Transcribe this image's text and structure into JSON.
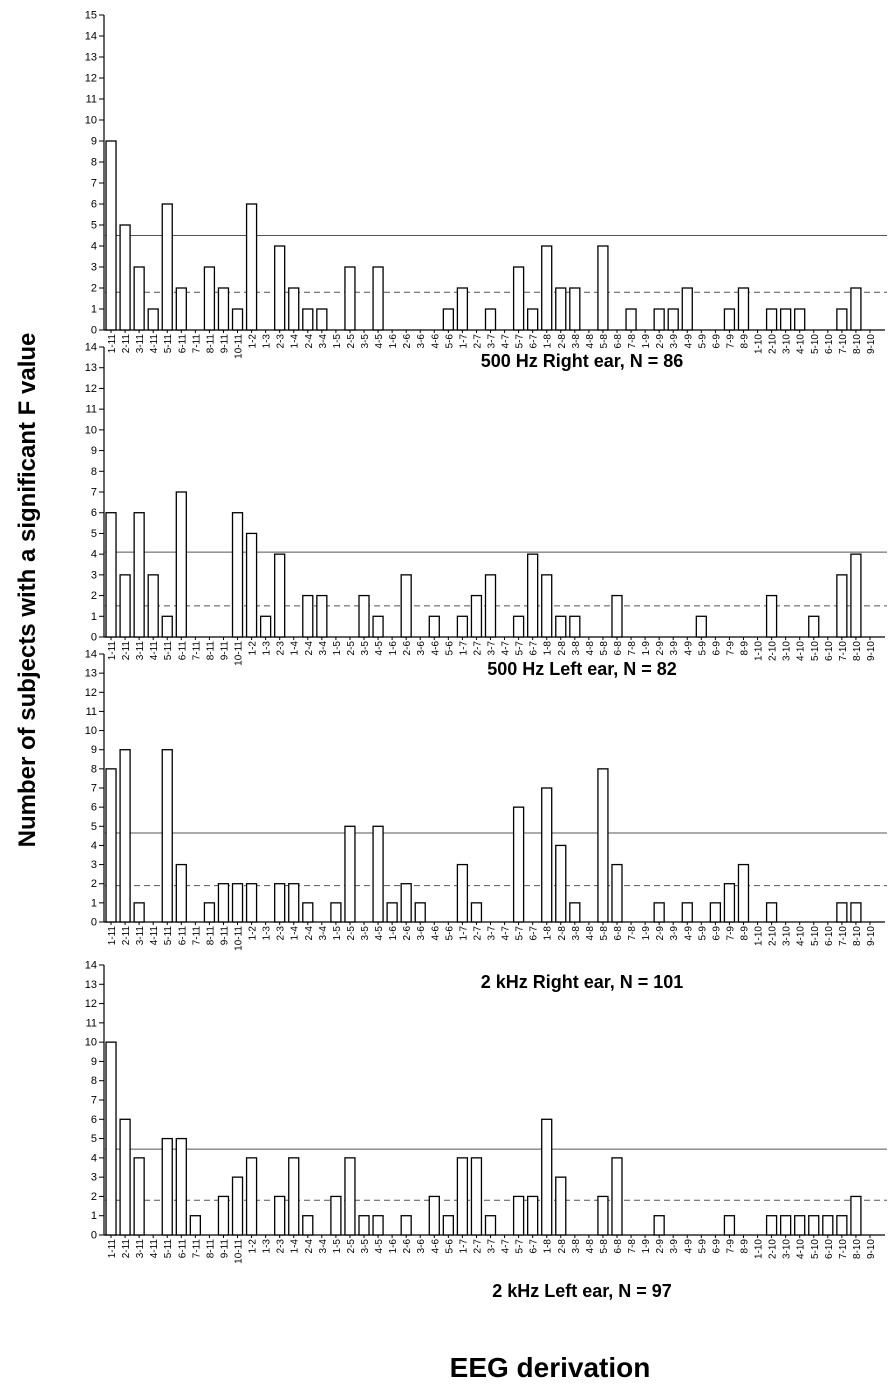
{
  "ylabel": "Number of subjects with a significant F value",
  "xlabel": "EEG derivation",
  "chart_data": [
    {
      "type": "bar",
      "title": "500 Hz Right ear, N = 86",
      "ylim": [
        0,
        15
      ],
      "y_ticks": [
        0,
        1,
        2,
        3,
        4,
        5,
        6,
        7,
        8,
        9,
        10,
        11,
        12,
        13,
        14,
        15
      ],
      "solid_line": 4.5,
      "dashed_line": 1.8,
      "categories": [
        "1-11",
        "2-11",
        "3-11",
        "4-11",
        "5-11",
        "6-11",
        "7-11",
        "8-11",
        "9-11",
        "10-11",
        "1-2",
        "1-3",
        "2-3",
        "1-4",
        "2-4",
        "3-4",
        "1-5",
        "2-5",
        "3-5",
        "4-5",
        "1-6",
        "2-6",
        "3-6",
        "4-6",
        "5-6",
        "1-7",
        "2-7",
        "3-7",
        "4-7",
        "5-7",
        "6-7",
        "1-8",
        "2-8",
        "3-8",
        "4-8",
        "5-8",
        "6-8",
        "7-8",
        "1-9",
        "2-9",
        "3-9",
        "4-9",
        "5-9",
        "6-9",
        "7-9",
        "8-9",
        "1-10",
        "2-10",
        "3-10",
        "4-10",
        "5-10",
        "6-10",
        "7-10",
        "8-10",
        "9-10"
      ],
      "values": [
        9,
        5,
        3,
        1,
        6,
        2,
        0,
        3,
        2,
        1,
        6,
        0,
        4,
        2,
        1,
        1,
        0,
        3,
        0,
        3,
        0,
        0,
        0,
        0,
        1,
        2,
        0,
        1,
        0,
        3,
        1,
        4,
        2,
        2,
        0,
        4,
        0,
        1,
        0,
        1,
        1,
        2,
        0,
        0,
        1,
        2,
        0,
        1,
        1,
        1,
        0,
        0,
        1,
        2,
        0
      ]
    },
    {
      "type": "bar",
      "title": "500 Hz Left ear, N = 82",
      "ylim": [
        0,
        14
      ],
      "y_ticks": [
        0,
        1,
        2,
        3,
        4,
        5,
        6,
        7,
        8,
        9,
        10,
        11,
        12,
        13,
        14
      ],
      "solid_line": 4.1,
      "dashed_line": 1.5,
      "categories": [
        "1-11",
        "2-11",
        "3-11",
        "4-11",
        "5-11",
        "6-11",
        "7-11",
        "8-11",
        "9-11",
        "10-11",
        "1-2",
        "1-3",
        "2-3",
        "1-4",
        "2-4",
        "3-4",
        "1-5",
        "2-5",
        "3-5",
        "4-5",
        "1-6",
        "2-6",
        "3-6",
        "4-6",
        "5-6",
        "1-7",
        "2-7",
        "3-7",
        "4-7",
        "5-7",
        "6-7",
        "1-8",
        "2-8",
        "3-8",
        "4-8",
        "5-8",
        "6-8",
        "7-8",
        "1-9",
        "2-9",
        "3-9",
        "4-9",
        "5-9",
        "6-9",
        "7-9",
        "8-9",
        "1-10",
        "2-10",
        "3-10",
        "4-10",
        "5-10",
        "6-10",
        "7-10",
        "8-10",
        "9-10"
      ],
      "values": [
        6,
        3,
        6,
        3,
        1,
        7,
        0,
        0,
        0,
        6,
        5,
        1,
        4,
        0,
        2,
        2,
        0,
        0,
        2,
        1,
        0,
        3,
        0,
        1,
        0,
        1,
        2,
        3,
        0,
        1,
        4,
        3,
        1,
        1,
        0,
        0,
        2,
        0,
        0,
        0,
        0,
        0,
        1,
        0,
        0,
        0,
        0,
        2,
        0,
        0,
        1,
        0,
        3,
        4,
        0
      ]
    },
    {
      "type": "bar",
      "title": "2 kHz Right ear, N = 101",
      "ylim": [
        0,
        14
      ],
      "y_ticks": [
        0,
        1,
        2,
        3,
        4,
        5,
        6,
        7,
        8,
        9,
        10,
        11,
        12,
        13,
        14
      ],
      "solid_line": 4.65,
      "dashed_line": 1.9,
      "categories": [
        "1-11",
        "2-11",
        "3-11",
        "4-11",
        "5-11",
        "6-11",
        "7-11",
        "8-11",
        "9-11",
        "10-11",
        "1-2",
        "1-3",
        "2-3",
        "1-4",
        "2-4",
        "3-4",
        "1-5",
        "2-5",
        "3-5",
        "4-5",
        "1-6",
        "2-6",
        "3-6",
        "4-6",
        "5-6",
        "1-7",
        "2-7",
        "3-7",
        "4-7",
        "5-7",
        "6-7",
        "1-8",
        "2-8",
        "3-8",
        "4-8",
        "5-8",
        "6-8",
        "7-8",
        "1-9",
        "2-9",
        "3-9",
        "4-9",
        "5-9",
        "6-9",
        "7-9",
        "8-9",
        "1-10",
        "2-10",
        "3-10",
        "4-10",
        "5-10",
        "6-10",
        "7-10",
        "8-10",
        "9-10"
      ],
      "values": [
        8,
        9,
        1,
        0,
        9,
        3,
        0,
        1,
        2,
        2,
        2,
        0,
        2,
        2,
        1,
        0,
        1,
        5,
        0,
        5,
        1,
        2,
        1,
        0,
        0,
        3,
        1,
        0,
        0,
        6,
        0,
        7,
        4,
        1,
        0,
        8,
        3,
        0,
        0,
        1,
        0,
        1,
        0,
        1,
        2,
        3,
        0,
        1,
        0,
        0,
        0,
        0,
        1,
        1,
        0
      ]
    },
    {
      "type": "bar",
      "title": "2 kHz Left ear, N = 97",
      "ylim": [
        0,
        14
      ],
      "y_ticks": [
        0,
        1,
        2,
        3,
        4,
        5,
        6,
        7,
        8,
        9,
        10,
        11,
        12,
        13,
        14
      ],
      "solid_line": 4.45,
      "dashed_line": 1.8,
      "categories": [
        "1-11",
        "2-11",
        "3-11",
        "4-11",
        "5-11",
        "6-11",
        "7-11",
        "8-11",
        "9-11",
        "10-11",
        "1-2",
        "1-3",
        "2-3",
        "1-4",
        "2-4",
        "3-4",
        "1-5",
        "2-5",
        "3-5",
        "4-5",
        "1-6",
        "2-6",
        "3-6",
        "4-6",
        "5-6",
        "1-7",
        "2-7",
        "3-7",
        "4-7",
        "5-7",
        "6-7",
        "1-8",
        "2-8",
        "3-8",
        "4-8",
        "5-8",
        "6-8",
        "7-8",
        "1-9",
        "2-9",
        "3-9",
        "4-9",
        "5-9",
        "6-9",
        "7-9",
        "8-9",
        "1-10",
        "2-10",
        "3-10",
        "4-10",
        "5-10",
        "6-10",
        "7-10",
        "8-10",
        "9-10"
      ],
      "values": [
        10,
        6,
        4,
        0,
        5,
        5,
        1,
        0,
        2,
        3,
        4,
        0,
        2,
        4,
        1,
        0,
        2,
        4,
        1,
        1,
        0,
        1,
        0,
        2,
        1,
        4,
        4,
        1,
        0,
        2,
        2,
        6,
        3,
        0,
        0,
        2,
        4,
        0,
        0,
        1,
        0,
        0,
        0,
        0,
        1,
        0,
        0,
        1,
        1,
        1,
        1,
        1,
        1,
        2,
        0
      ]
    }
  ]
}
